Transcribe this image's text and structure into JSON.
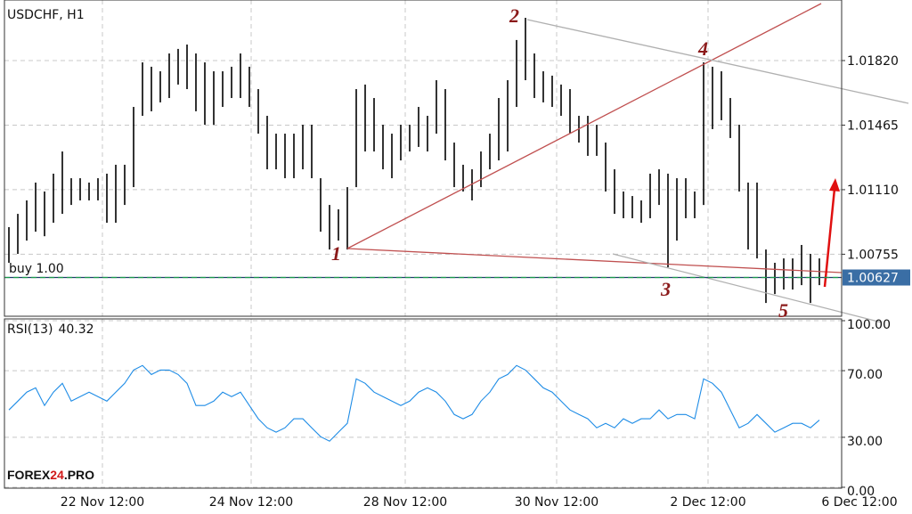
{
  "chart_data": [
    {
      "type": "range-bar",
      "title": "USDCHF, H1",
      "xlim": [
        -0.5,
        93.5
      ],
      "ylim": [
        1.00414,
        1.02153
      ],
      "yticks": [
        1.00755,
        {
          "value": 1.0111,
          "label": "1.01110"
        },
        1.01465,
        {
          "value": 1.0182,
          "label": "1.01820"
        }
      ],
      "high": [
        1.00904,
        1.00977,
        1.01051,
        1.01149,
        1.011,
        1.01198,
        1.0132,
        1.01173,
        1.01173,
        1.01149,
        1.01173,
        1.01198,
        1.01247,
        1.01247,
        1.01565,
        1.0181,
        1.01786,
        1.01761,
        1.01859,
        1.01884,
        1.01908,
        1.01859,
        1.0181,
        1.01761,
        1.01761,
        1.01786,
        1.01859,
        1.01786,
        1.01663,
        1.01516,
        1.01418,
        1.01418,
        1.01418,
        1.01467,
        1.01467,
        1.01173,
        1.01026,
        1.01002,
        1.01124,
        1.01663,
        1.01688,
        1.01614,
        1.01467,
        1.01418,
        1.01467,
        1.01467,
        1.01565,
        1.01516,
        1.01712,
        1.01663,
        1.01369,
        1.01247,
        1.01222,
        1.0132,
        1.01418,
        1.01614,
        1.01712,
        1.01933,
        1.02055,
        1.01859,
        1.01761,
        1.01737,
        1.01688,
        1.01663,
        1.01516,
        1.01516,
        1.01467,
        1.01369,
        1.01222,
        1.011,
        1.01075,
        1.01051,
        1.01198,
        1.01222,
        1.01198,
        1.01173,
        1.01173,
        1.011,
        1.0181,
        1.01786,
        1.01761,
        1.01614,
        1.01467,
        1.01149,
        1.01149,
        1.00781,
        1.00708,
        1.00732,
        1.00732,
        1.00806,
        1.00757,
        1.00732
      ],
      "low": [
        1.00708,
        1.00757,
        1.0083,
        1.00879,
        1.00854,
        1.00928,
        1.00977,
        1.01026,
        1.01051,
        1.01051,
        1.01051,
        1.00928,
        1.00928,
        1.01026,
        1.01124,
        1.01516,
        1.01541,
        1.0159,
        1.01614,
        1.01688,
        1.01663,
        1.01541,
        1.01467,
        1.01467,
        1.01565,
        1.01614,
        1.01614,
        1.01565,
        1.01418,
        1.01222,
        1.01222,
        1.01173,
        1.01173,
        1.01222,
        1.01173,
        1.00879,
        1.00781,
        1.0083,
        1.00781,
        1.01124,
        1.0132,
        1.0132,
        1.01222,
        1.01173,
        1.01271,
        1.0132,
        1.01345,
        1.0132,
        1.01418,
        1.01271,
        1.01124,
        1.011,
        1.01051,
        1.01124,
        1.01222,
        1.01271,
        1.0132,
        1.01565,
        1.01712,
        1.01614,
        1.0159,
        1.01565,
        1.01516,
        1.01418,
        1.01369,
        1.01296,
        1.01296,
        1.011,
        1.00977,
        1.00953,
        1.00953,
        1.00928,
        1.00953,
        1.01026,
        1.00683,
        1.0083,
        1.00953,
        1.00953,
        1.01026,
        1.01443,
        1.01492,
        1.01394,
        1.011,
        1.00781,
        1.00732,
        1.00487,
        1.00536,
        1.00561,
        1.00561,
        1.00585,
        1.00487,
        1.00585
      ],
      "color": "#000000",
      "last_price": 1.00627,
      "order_label": "buy 1.00",
      "annotations": [
        "1",
        "2",
        "3",
        "4",
        "5"
      ]
    },
    {
      "type": "line",
      "title": "RSI(13)",
      "current": 40.32,
      "xlim": [
        -0.5,
        93.5
      ],
      "ylim": [
        0,
        100
      ],
      "yticks": [
        {
          "value": 0,
          "label": "0.00"
        },
        {
          "value": 30,
          "label": "30.00"
        },
        {
          "value": 70,
          "label": "70.00"
        },
        {
          "value": 100,
          "label": "100.00"
        }
      ],
      "xticks": [
        {
          "value": 10.5,
          "label": "22 Nov 12:00"
        },
        {
          "value": 27.2,
          "label": "24 Nov 12:00"
        },
        {
          "value": 44.5,
          "label": "28 Nov 12:00"
        },
        {
          "value": 61.5,
          "label": "30 Nov 12:00"
        },
        {
          "value": 78.5,
          "label": "2 Dec 12:00"
        },
        {
          "value": 95.5,
          "label": "6 Dec 12:00"
        }
      ],
      "color": "#1e8ce6",
      "values": [
        46.4,
        51.7,
        57.1,
        59.7,
        49.1,
        57.1,
        62.4,
        51.7,
        54.4,
        57.1,
        54.4,
        51.7,
        57.1,
        62.4,
        70.4,
        73.1,
        67.7,
        70.4,
        70.4,
        67.7,
        62.4,
        49.1,
        49.1,
        51.7,
        57.1,
        54.4,
        57.1,
        49.1,
        41.1,
        35.7,
        33.1,
        35.7,
        41.1,
        41.1,
        35.7,
        30.4,
        27.7,
        33.1,
        38.4,
        65.1,
        62.4,
        57.1,
        54.4,
        51.7,
        49.1,
        51.7,
        57.1,
        59.7,
        57.1,
        51.7,
        43.7,
        41.1,
        43.7,
        51.7,
        57.1,
        65.1,
        67.7,
        73.1,
        70.4,
        65.1,
        59.7,
        57.1,
        51.7,
        46.4,
        43.7,
        41.1,
        35.7,
        38.4,
        35.7,
        41.1,
        38.4,
        41.1,
        41.1,
        46.4,
        41.1,
        43.7,
        43.7,
        41.1,
        65.1,
        62.4,
        57.1,
        46.4,
        35.7,
        38.4,
        43.7,
        38.4,
        33.1,
        35.7,
        38.4,
        38.4,
        35.7,
        40.32
      ]
    }
  ],
  "watermark": [
    "FOREX",
    "24",
    ".PRO"
  ]
}
